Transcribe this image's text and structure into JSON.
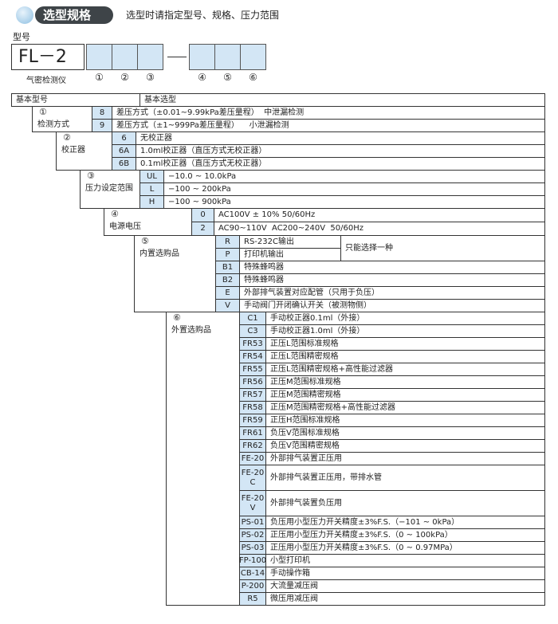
{
  "header": {
    "title": "选型规格",
    "subtitle": "选型时请指定型号、规格、压力范围"
  },
  "model": {
    "label": "型号",
    "prefix": "FL－2",
    "sub_label": "气密检测仪",
    "positions": [
      "①",
      "②",
      "③",
      "④",
      "⑤",
      "⑥"
    ]
  },
  "table": {
    "header": [
      "基本型号",
      "基本选型"
    ],
    "note": "只能选择一种",
    "groups": [
      {
        "number": "①",
        "name": "检测方式",
        "options": [
          {
            "code": "8",
            "description": "差压方式（±0.01~9.99kPa差压量程）  中泄漏检测"
          },
          {
            "code": "9",
            "description": "差压方式（±1~999Pa差压量程）    小泄漏检测"
          }
        ]
      },
      {
        "number": "②",
        "name": "校正器",
        "options": [
          {
            "code": "6",
            "description": "无校正器"
          },
          {
            "code": "6A",
            "description": "1.0ml校正器（直压方式无校正器）"
          },
          {
            "code": "6B",
            "description": "0.1ml校正器（直压方式无校正器）"
          }
        ]
      },
      {
        "number": "③",
        "name": "压力设定范围",
        "options": [
          {
            "code": "UL",
            "description": "−10.0 ~ 10.0kPa"
          },
          {
            "code": "L",
            "description": "−100 ~ 200kPa"
          },
          {
            "code": "H",
            "description": "−100 ~ 900kPa"
          }
        ]
      },
      {
        "number": "④",
        "name": "电源电压",
        "options": [
          {
            "code": "0",
            "description": "AC100V ± 10% 50/60Hz"
          },
          {
            "code": "2",
            "description": "AC90~110V  AC200~240V  50/60Hz"
          }
        ]
      },
      {
        "number": "⑤",
        "name": "内置选购品",
        "options": [
          {
            "code": "R",
            "description": "RS-232C输出"
          },
          {
            "code": "P",
            "description": "打印机输出"
          },
          {
            "code": "B1",
            "description": "特殊蜂鸣器"
          },
          {
            "code": "B2",
            "description": "特殊蜂鸣器"
          },
          {
            "code": "E",
            "description": "外部排气装置对应配管（只用于负压）"
          },
          {
            "code": "V",
            "description": "手动阀门开闭确认开关（被测物侧）"
          }
        ]
      },
      {
        "number": "⑥",
        "name": "外置选购品",
        "options": [
          {
            "code": "C1",
            "description": "手动校正器0.1ml（外接）"
          },
          {
            "code": "C3",
            "description": "手动校正器1.0ml（外接）"
          },
          {
            "code": "FR53",
            "description": "正压L范围标准规格"
          },
          {
            "code": "FR54",
            "description": "正压L范围精密规格"
          },
          {
            "code": "FR55",
            "description": "正压L范围精密规格+高性能过滤器"
          },
          {
            "code": "FR56",
            "description": "正压M范围标准规格"
          },
          {
            "code": "FR57",
            "description": "正压M范围精密规格"
          },
          {
            "code": "FR58",
            "description": "正压M范围精密规格+高性能过滤器"
          },
          {
            "code": "FR59",
            "description": "正压H范围标准规格"
          },
          {
            "code": "FR61",
            "description": "负压V范围标准规格"
          },
          {
            "code": "FR62",
            "description": "负压V范围精密规格"
          },
          {
            "code": "FE-20",
            "description": "外部排气装置正压用"
          },
          {
            "code": "FE-20\nC",
            "description": "外部排气装置正压用，带排水管"
          },
          {
            "code": "FE-20\nV",
            "description": "外部排气装置负压用"
          },
          {
            "code": "PS-01",
            "description": "负压用小型压力开关精度±3%F.S.（−101 ~ 0kPa）"
          },
          {
            "code": "PS-02",
            "description": "正压用小型压力开关精度±3%F.S.（0 ~ 100kPa）"
          },
          {
            "code": "PS-03",
            "description": "正压用小型压力开关精度±3%F.S.（0 ~ 0.97MPa）"
          },
          {
            "code": "FP-100",
            "description": "小型打印机"
          },
          {
            "code": "CB-14",
            "description": "手动操作箱"
          },
          {
            "code": "P-200",
            "description": "大流量减压阀"
          },
          {
            "code": "R5",
            "description": "微压用减压阀"
          }
        ]
      }
    ]
  }
}
